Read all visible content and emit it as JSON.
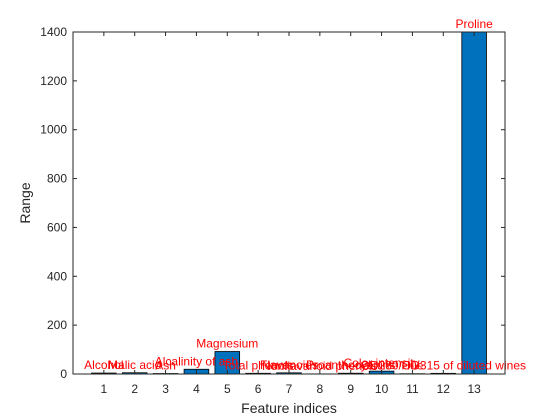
{
  "chart_data": {
    "type": "bar",
    "categories": [
      "1",
      "2",
      "3",
      "4",
      "5",
      "6",
      "7",
      "8",
      "9",
      "10",
      "11",
      "12",
      "13"
    ],
    "values": [
      3.8,
      5.06,
      1.87,
      19.4,
      92,
      2.9,
      4.74,
      0.53,
      3.17,
      11.72,
      1.23,
      2.73,
      1402
    ],
    "bar_labels": [
      "Alcohol",
      "Malic acid",
      "Ash",
      "Alcalinity of ash",
      "Magnesium",
      "Total phenols",
      "Flavanoids",
      "Nonflavanoid phenols",
      "Proanthocyanins",
      "Color intensity",
      "Hue",
      "OD280/OD315 of diluted wines",
      "Proline"
    ],
    "xlabel": "Feature indices",
    "ylabel": "Range",
    "ylim": [
      0,
      1400
    ],
    "yticks": [
      0,
      200,
      400,
      600,
      800,
      1000,
      1200,
      1400
    ],
    "title": "",
    "grid": false,
    "legend": "none"
  },
  "colors": {
    "bar_fill": "#0072bd",
    "bar_stroke": "#000000",
    "label_text": "#ff0000",
    "axis": "#262626"
  }
}
